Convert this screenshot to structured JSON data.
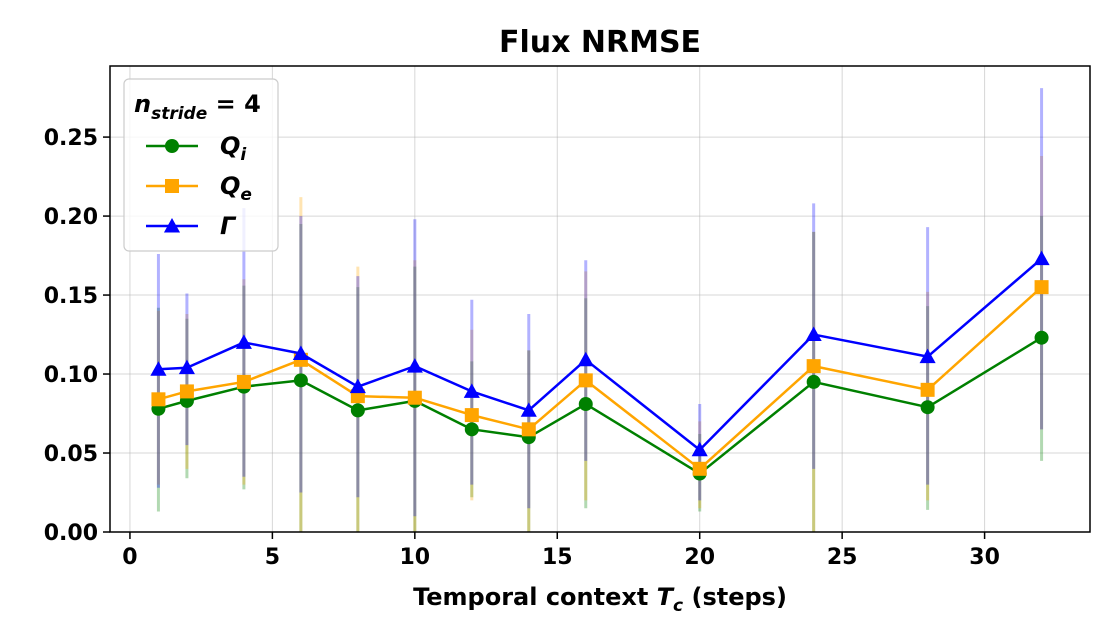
{
  "chart_data": {
    "type": "line",
    "title": "Flux NRMSE",
    "xlabel": {
      "prefix": "Temporal context ",
      "symbol": "T",
      "subscript": "c",
      "suffix": " (steps)"
    },
    "ylabel": "",
    "xlim": [
      -0.7,
      33.7
    ],
    "ylim": [
      0.0,
      0.295
    ],
    "x_ticks": [
      0,
      5,
      10,
      15,
      20,
      25,
      30
    ],
    "x_tick_labels": [
      "0",
      "5",
      "10",
      "15",
      "20",
      "25",
      "30"
    ],
    "y_ticks": [
      0.0,
      0.05,
      0.1,
      0.15,
      0.2,
      0.25
    ],
    "y_tick_labels": [
      "0.00",
      "0.05",
      "0.10",
      "0.15",
      "0.20",
      "0.25"
    ],
    "grid": true,
    "legend": {
      "placement": "top-left",
      "title_symbol": "n",
      "title_subscript": "stride",
      "title_suffix": " = 4"
    },
    "x": [
      1,
      2,
      4,
      6,
      8,
      10,
      12,
      14,
      16,
      20,
      24,
      28,
      32
    ],
    "series": [
      {
        "name": "Q",
        "name_subscript": "i",
        "color": "#008000",
        "marker": "circle",
        "values": [
          0.078,
          0.083,
          0.092,
          0.096,
          0.077,
          0.083,
          0.065,
          0.06,
          0.081,
          0.037,
          0.095,
          0.079,
          0.123
        ],
        "err_low": [
          0.013,
          0.034,
          0.027,
          0.0,
          0.0,
          0.0,
          0.022,
          0.0,
          0.015,
          0.013,
          0.0,
          0.014,
          0.045
        ],
        "err_high": [
          0.142,
          0.135,
          0.156,
          0.195,
          0.155,
          0.168,
          0.108,
          0.115,
          0.148,
          0.062,
          0.19,
          0.143,
          0.2
        ]
      },
      {
        "name": "Q",
        "name_subscript": "e",
        "color": "#FFA500",
        "marker": "square",
        "values": [
          0.084,
          0.089,
          0.095,
          0.109,
          0.086,
          0.085,
          0.074,
          0.065,
          0.096,
          0.04,
          0.105,
          0.09,
          0.155
        ],
        "err_low": [
          0.03,
          0.04,
          0.03,
          0.0,
          0.0,
          0.0,
          0.02,
          0.0,
          0.02,
          0.015,
          0.0,
          0.02,
          0.065
        ],
        "err_high": [
          0.14,
          0.138,
          0.16,
          0.212,
          0.168,
          0.172,
          0.128,
          0.115,
          0.165,
          0.07,
          0.19,
          0.152,
          0.238
        ]
      },
      {
        "name": "Γ",
        "name_subscript": "",
        "color": "#0000FF",
        "marker": "triangle",
        "values": [
          0.103,
          0.104,
          0.12,
          0.113,
          0.092,
          0.105,
          0.089,
          0.077,
          0.109,
          0.052,
          0.125,
          0.111,
          0.173
        ],
        "err_low": [
          0.028,
          0.055,
          0.035,
          0.025,
          0.022,
          0.01,
          0.03,
          0.015,
          0.045,
          0.02,
          0.04,
          0.03,
          0.065
        ],
        "err_high": [
          0.176,
          0.151,
          0.205,
          0.2,
          0.162,
          0.198,
          0.147,
          0.138,
          0.172,
          0.081,
          0.208,
          0.193,
          0.281
        ]
      }
    ]
  }
}
